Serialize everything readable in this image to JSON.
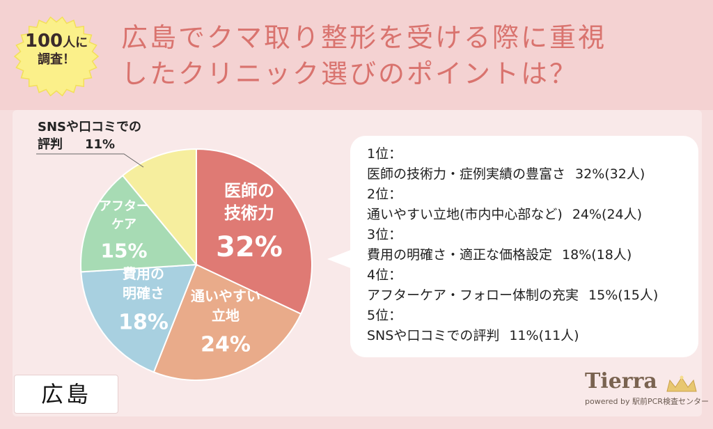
{
  "badge": {
    "line1_num": "100",
    "line1_suffix": "人に",
    "line2": "調査！"
  },
  "title": {
    "line1": "広島でクマ取り整形を受ける際に重視",
    "line2": "したクリニック選びのポイントは？"
  },
  "city": "広島",
  "chart_data": {
    "type": "pie",
    "title": "",
    "slices": [
      {
        "label_lines": [
          "医師の",
          "技術力"
        ],
        "value": 32,
        "value_label": "32%",
        "color": "#df7a74"
      },
      {
        "label_lines": [
          "通いやすい",
          "立地"
        ],
        "value": 24,
        "value_label": "24%",
        "color": "#e9ab8a"
      },
      {
        "label_lines": [
          "費用の",
          "明確さ"
        ],
        "value": 18,
        "value_label": "18%",
        "color": "#a8d0e0"
      },
      {
        "label_lines": [
          "アフター",
          "ケア"
        ],
        "value": 15,
        "value_label": "15%",
        "color": "#a7dbb4"
      },
      {
        "label_lines": [
          "SNSや口コミでの",
          "評判"
        ],
        "value": 11,
        "value_label": "11%",
        "color": "#f6ee9e"
      }
    ]
  },
  "ranking": [
    {
      "rank": "1位：",
      "text": "医師の技術力・症例実績の豊富さ",
      "pct": "32%(32人)"
    },
    {
      "rank": "2位：",
      "text": "通いやすい立地(市内中心部など)",
      "pct": "24%(24人)"
    },
    {
      "rank": "3位：",
      "text": "費用の明確さ・適正な価格設定",
      "pct": "18%(18人)"
    },
    {
      "rank": "4位：",
      "text": "アフターケア・フォロー体制の充実",
      "pct": "15%(15人)"
    },
    {
      "rank": "5位：",
      "text": "SNSや口コミでの評判",
      "pct": "11%(11人)"
    }
  ],
  "logo": {
    "name": "Tierra",
    "sub": "powered by 駅前PCR検査センター"
  }
}
